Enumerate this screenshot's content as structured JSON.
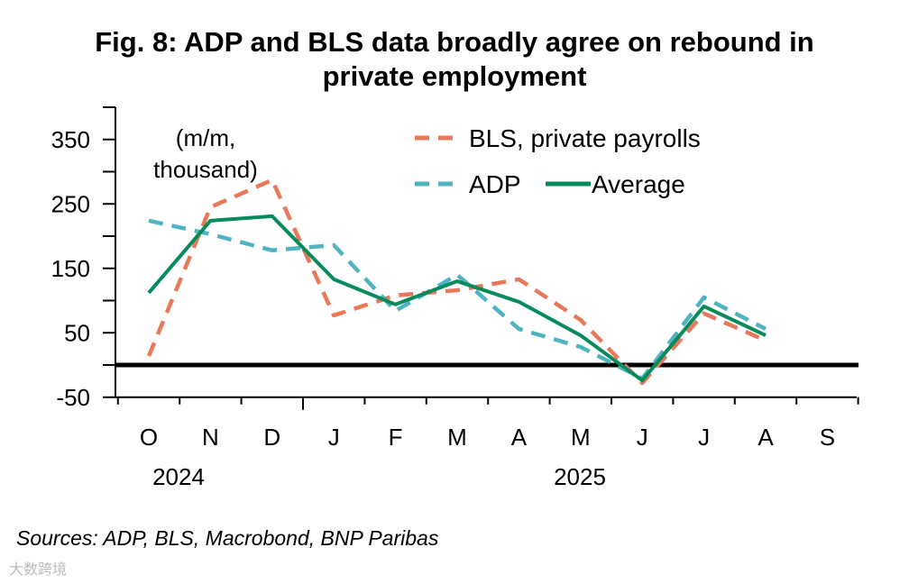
{
  "title": "Fig. 8: ADP and BLS data broadly agree on rebound in private employment",
  "title_lines": [
    "Fig. 8: ADP and BLS data broadly agree on rebound in",
    "private employment"
  ],
  "source": "Sources: ADP, BLS, Macrobond, BNP Paribas",
  "watermark": "大数跨境",
  "chart_data": {
    "type": "line",
    "title": "Fig. 8: ADP and BLS data broadly agree on rebound in private employment",
    "ylabel": "(m/m, thousand)",
    "unit_lines": [
      "(m/m,",
      "thousand)"
    ],
    "xlabel": "",
    "categories": [
      "O",
      "N",
      "D",
      "J",
      "F",
      "M",
      "A",
      "M",
      "J",
      "J",
      "A",
      "S"
    ],
    "year_labels": [
      {
        "label": "2024",
        "index": 0.5
      },
      {
        "label": "2025",
        "index": 6.5
      }
    ],
    "ylim": [
      -50,
      400
    ],
    "yticks": [
      350,
      250,
      150,
      50,
      -50
    ],
    "legend_position": "top-right",
    "series": [
      {
        "name": "BLS, private payrolls",
        "color": "#E8785A",
        "style": "dashed",
        "values": [
          14,
          245,
          287,
          77,
          108,
          116,
          133,
          70,
          -28,
          80,
          38,
          null
        ]
      },
      {
        "name": "ADP",
        "color": "#4FB3C2",
        "style": "dashed",
        "values": [
          224,
          203,
          178,
          186,
          84,
          140,
          56,
          28,
          -21,
          105,
          56,
          null
        ]
      },
      {
        "name": "Average",
        "color": "#088A5A",
        "style": "solid",
        "values": [
          112,
          224,
          231,
          133,
          94,
          130,
          98,
          46,
          -24,
          91,
          46,
          null
        ]
      }
    ]
  }
}
